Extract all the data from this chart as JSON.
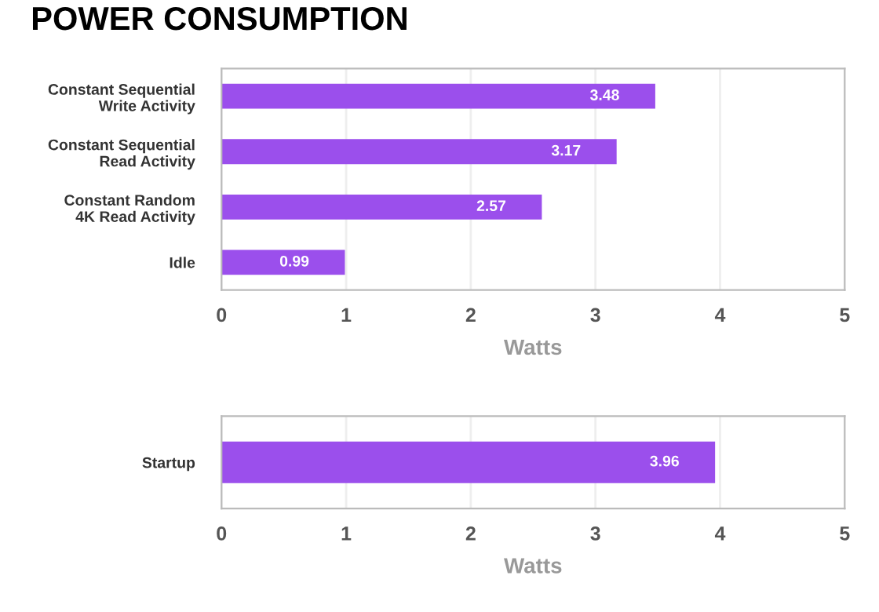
{
  "chart_data": [
    {
      "type": "bar",
      "title": "POWER CONSUMPTION",
      "orientation": "horizontal",
      "categories": [
        "Constant Sequential\nWrite Activity",
        "Constant Sequential\nRead Activity",
        "Constant Random\n4K Read Activity",
        "Idle"
      ],
      "values": [
        3.48,
        3.17,
        2.57,
        0.99
      ],
      "color": "#9b4fec",
      "xlim": [
        0,
        5
      ],
      "xticks": [
        0,
        1,
        2,
        3,
        4,
        5
      ],
      "xlabel": "Watts",
      "grid": "x",
      "data_labels": true,
      "legend": false
    },
    {
      "type": "bar",
      "orientation": "horizontal",
      "categories": [
        "Startup"
      ],
      "values": [
        3.96
      ],
      "color": "#9b4fec",
      "xlim": [
        0,
        5
      ],
      "xticks": [
        0,
        1,
        2,
        3,
        4,
        5
      ],
      "xlabel": "Watts",
      "grid": "x",
      "data_labels": true,
      "legend": false
    }
  ]
}
